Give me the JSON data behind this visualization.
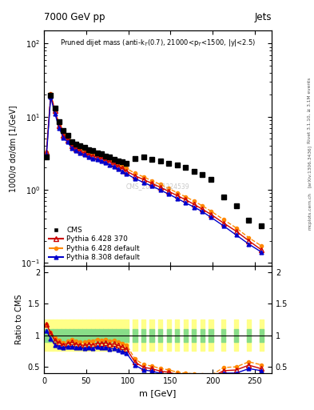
{
  "title_main": "Pruned dijet mass (anti-k_{T}(0.7), 21000<p_{T}<1500, |y|<2.5)",
  "header_left": "7000 GeV pp",
  "header_right": "Jets",
  "ylabel_main": "1000/σ dσ/dm [1/GeV]",
  "ylabel_ratio": "Ratio to CMS",
  "xlabel": "m [GeV]",
  "watermark": "CMS_2013_I1224539",
  "rivet_label": "Rivet 3.1.10, ≥ 3.1M events",
  "arxiv_label": "[arXiv:1306.3436]",
  "mcplots_label": "mcplots.cern.ch",
  "cms_m": [
    3,
    8,
    13,
    18,
    23,
    28,
    33,
    38,
    43,
    48,
    53,
    58,
    63,
    68,
    73,
    78,
    83,
    88,
    93,
    98,
    108,
    118,
    128,
    138,
    148,
    158,
    168,
    178,
    188,
    198,
    213,
    228,
    243,
    258
  ],
  "cms_y": [
    2.8,
    19.5,
    13.0,
    8.5,
    6.5,
    5.5,
    4.5,
    4.2,
    4.0,
    3.8,
    3.5,
    3.4,
    3.2,
    3.1,
    2.9,
    2.8,
    2.6,
    2.5,
    2.4,
    2.3,
    2.7,
    2.8,
    2.6,
    2.5,
    2.3,
    2.2,
    2.0,
    1.8,
    1.6,
    1.4,
    0.8,
    0.6,
    0.38,
    0.32
  ],
  "py6_m": [
    3,
    8,
    13,
    18,
    23,
    28,
    33,
    38,
    43,
    48,
    53,
    58,
    63,
    68,
    73,
    78,
    83,
    88,
    93,
    98,
    108,
    118,
    128,
    138,
    148,
    158,
    168,
    178,
    188,
    198,
    213,
    228,
    243,
    258
  ],
  "py6_y": [
    3.3,
    20.0,
    12.0,
    7.5,
    5.5,
    4.8,
    4.0,
    3.6,
    3.4,
    3.2,
    3.0,
    2.9,
    2.8,
    2.7,
    2.55,
    2.4,
    2.25,
    2.1,
    1.95,
    1.8,
    1.55,
    1.38,
    1.22,
    1.08,
    0.95,
    0.83,
    0.73,
    0.63,
    0.54,
    0.46,
    0.35,
    0.27,
    0.2,
    0.15
  ],
  "py6def_m": [
    3,
    8,
    13,
    18,
    23,
    28,
    33,
    38,
    43,
    48,
    53,
    58,
    63,
    68,
    73,
    78,
    83,
    88,
    93,
    98,
    108,
    118,
    128,
    138,
    148,
    158,
    168,
    178,
    188,
    198,
    213,
    228,
    243,
    258
  ],
  "py6def_y": [
    3.3,
    20.5,
    12.5,
    7.8,
    5.7,
    5.0,
    4.2,
    3.8,
    3.6,
    3.4,
    3.2,
    3.1,
    3.0,
    2.85,
    2.7,
    2.55,
    2.4,
    2.25,
    2.1,
    1.95,
    1.68,
    1.5,
    1.33,
    1.18,
    1.04,
    0.91,
    0.8,
    0.7,
    0.6,
    0.51,
    0.39,
    0.3,
    0.22,
    0.17
  ],
  "py8_m": [
    3,
    8,
    13,
    18,
    23,
    28,
    33,
    38,
    43,
    48,
    53,
    58,
    63,
    68,
    73,
    78,
    83,
    88,
    93,
    98,
    108,
    118,
    128,
    138,
    148,
    158,
    168,
    178,
    188,
    198,
    213,
    228,
    243,
    258
  ],
  "py8_y": [
    3.0,
    18.5,
    11.0,
    7.0,
    5.2,
    4.5,
    3.7,
    3.4,
    3.2,
    3.0,
    2.8,
    2.7,
    2.6,
    2.5,
    2.35,
    2.2,
    2.05,
    1.92,
    1.78,
    1.65,
    1.42,
    1.26,
    1.12,
    0.99,
    0.87,
    0.76,
    0.66,
    0.58,
    0.5,
    0.42,
    0.32,
    0.24,
    0.18,
    0.14
  ],
  "ratio_m": [
    3,
    8,
    13,
    18,
    23,
    28,
    33,
    38,
    43,
    48,
    53,
    58,
    63,
    68,
    73,
    78,
    83,
    88,
    93,
    98,
    108,
    118,
    128,
    138,
    148,
    158,
    168,
    178,
    188,
    198,
    213,
    228,
    243,
    258
  ],
  "ratio_py6": [
    1.18,
    1.03,
    0.92,
    0.88,
    0.85,
    0.87,
    0.89,
    0.86,
    0.85,
    0.84,
    0.86,
    0.85,
    0.875,
    0.871,
    0.879,
    0.857,
    0.865,
    0.84,
    0.813,
    0.783,
    0.574,
    0.493,
    0.469,
    0.432,
    0.413,
    0.377,
    0.365,
    0.35,
    0.338,
    0.329,
    0.438,
    0.45,
    0.526,
    0.469
  ],
  "ratio_py6def": [
    1.18,
    1.05,
    0.96,
    0.918,
    0.877,
    0.909,
    0.933,
    0.905,
    0.9,
    0.895,
    0.914,
    0.912,
    0.938,
    0.919,
    0.931,
    0.911,
    0.923,
    0.9,
    0.875,
    0.848,
    0.622,
    0.536,
    0.512,
    0.472,
    0.452,
    0.414,
    0.4,
    0.389,
    0.375,
    0.364,
    0.488,
    0.5,
    0.579,
    0.531
  ],
  "ratio_py8": [
    1.07,
    0.949,
    0.846,
    0.824,
    0.8,
    0.818,
    0.822,
    0.81,
    0.8,
    0.789,
    0.8,
    0.794,
    0.813,
    0.806,
    0.81,
    0.786,
    0.788,
    0.768,
    0.742,
    0.717,
    0.526,
    0.45,
    0.431,
    0.396,
    0.378,
    0.345,
    0.33,
    0.322,
    0.313,
    0.3,
    0.4,
    0.4,
    0.471,
    0.438
  ],
  "band_green_lo": [
    0.9,
    0.9,
    0.9,
    0.9,
    0.9,
    0.9,
    0.9,
    0.9,
    0.9,
    0.9,
    0.9,
    0.9,
    0.9,
    0.9,
    0.9,
    0.9,
    0.9,
    0.9,
    0.9,
    0.9,
    0.9,
    0.9,
    0.9,
    0.9,
    0.9,
    0.9,
    0.9,
    0.9,
    0.9,
    0.9,
    0.9,
    0.9,
    0.9,
    0.9
  ],
  "band_green_hi": [
    1.1,
    1.1,
    1.1,
    1.1,
    1.1,
    1.1,
    1.1,
    1.1,
    1.1,
    1.1,
    1.1,
    1.1,
    1.1,
    1.1,
    1.1,
    1.1,
    1.1,
    1.1,
    1.1,
    1.1,
    1.1,
    1.1,
    1.1,
    1.1,
    1.1,
    1.1,
    1.1,
    1.1,
    1.1,
    1.1,
    1.1,
    1.1,
    1.1,
    1.1
  ],
  "band_yellow_lo": [
    0.75,
    0.75,
    0.75,
    0.75,
    0.75,
    0.75,
    0.75,
    0.75,
    0.75,
    0.75,
    0.75,
    0.75,
    0.75,
    0.75,
    0.75,
    0.75,
    0.75,
    0.75,
    0.75,
    0.75,
    0.75,
    0.75,
    0.75,
    0.75,
    0.75,
    0.75,
    0.75,
    0.75,
    0.75,
    0.75,
    0.75,
    0.75,
    0.75,
    0.75
  ],
  "band_yellow_hi": [
    1.25,
    1.25,
    1.25,
    1.25,
    1.25,
    1.25,
    1.25,
    1.25,
    1.25,
    1.25,
    1.25,
    1.25,
    1.25,
    1.25,
    1.25,
    1.25,
    1.25,
    1.25,
    1.25,
    1.25,
    1.25,
    1.25,
    1.25,
    1.25,
    1.25,
    1.25,
    1.25,
    1.25,
    1.25,
    1.25,
    1.25,
    1.25,
    1.25,
    1.25
  ],
  "color_cms": "#000000",
  "color_py6": "#cc0000",
  "color_py6def": "#ff8800",
  "color_py8": "#0000cc",
  "xlim": [
    0,
    270
  ],
  "ylim_main_log": [
    0.09,
    150
  ],
  "ylim_ratio": [
    0.4,
    2.1
  ]
}
